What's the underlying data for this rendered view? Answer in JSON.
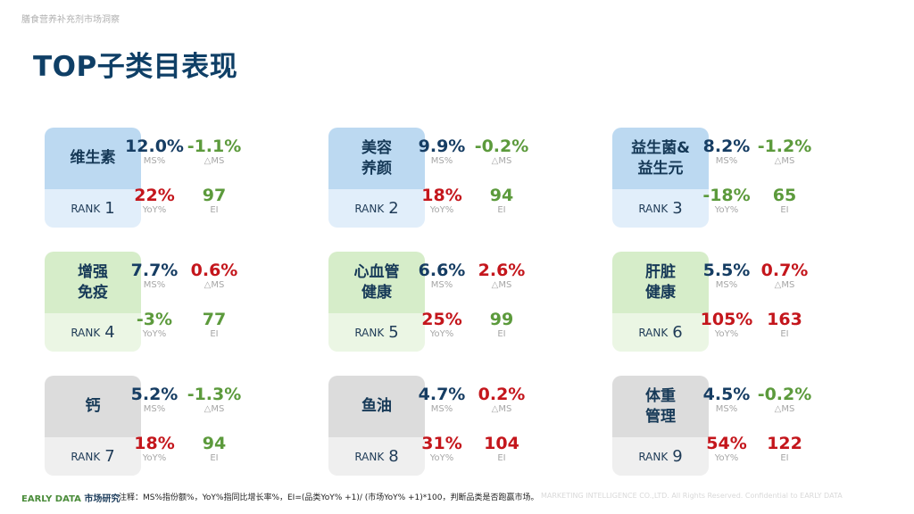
{
  "header": {
    "top_note": "膳食营养补充剂市场洞察",
    "title": "TOP子类目表现"
  },
  "labels": {
    "ms": "MS%",
    "dms": "△MS",
    "yoy": "YoY%",
    "ei": "EI",
    "rank": "RANK"
  },
  "colors": {
    "navy": "#163d63",
    "green": "#5c9a3c",
    "red": "#c4161c"
  },
  "categories": [
    {
      "name": "维生素",
      "rank": "1",
      "theme": "blue",
      "ms": "12.0%",
      "dms": "-1.1%",
      "yoy": "22%",
      "ei": "97",
      "ms_color": "navy",
      "dms_color": "green",
      "yoy_color": "red",
      "ei_color": "green"
    },
    {
      "name": "美容\n养颜",
      "rank": "2",
      "theme": "blue",
      "ms": "9.9%",
      "dms": "-0.2%",
      "yoy": "18%",
      "ei": "94",
      "ms_color": "navy",
      "dms_color": "green",
      "yoy_color": "red",
      "ei_color": "green"
    },
    {
      "name": "益生菌&\n益生元",
      "rank": "3",
      "theme": "blue",
      "ms": "8.2%",
      "dms": "-1.2%",
      "yoy": "-18%",
      "ei": "65",
      "ms_color": "navy",
      "dms_color": "green",
      "yoy_color": "green",
      "ei_color": "green"
    },
    {
      "name": "增强\n免疫",
      "rank": "4",
      "theme": "green",
      "ms": "7.7%",
      "dms": "0.6%",
      "yoy": "-3%",
      "ei": "77",
      "ms_color": "navy",
      "dms_color": "red",
      "yoy_color": "green",
      "ei_color": "green"
    },
    {
      "name": "心血管\n健康",
      "rank": "5",
      "theme": "green",
      "ms": "6.6%",
      "dms": "2.6%",
      "yoy": "25%",
      "ei": "99",
      "ms_color": "navy",
      "dms_color": "red",
      "yoy_color": "red",
      "ei_color": "green"
    },
    {
      "name": "肝脏\n健康",
      "rank": "6",
      "theme": "green",
      "ms": "5.5%",
      "dms": "0.7%",
      "yoy": "105%",
      "ei": "163",
      "ms_color": "navy",
      "dms_color": "red",
      "yoy_color": "red",
      "ei_color": "red"
    },
    {
      "name": "钙",
      "rank": "7",
      "theme": "gray",
      "ms": "5.2%",
      "dms": "-1.3%",
      "yoy": "18%",
      "ei": "94",
      "ms_color": "navy",
      "dms_color": "green",
      "yoy_color": "red",
      "ei_color": "green"
    },
    {
      "name": "鱼油",
      "rank": "8",
      "theme": "gray",
      "ms": "4.7%",
      "dms": "0.2%",
      "yoy": "31%",
      "ei": "104",
      "ms_color": "navy",
      "dms_color": "red",
      "yoy_color": "red",
      "ei_color": "red"
    },
    {
      "name": "体重\n管理",
      "rank": "9",
      "theme": "gray",
      "ms": "4.5%",
      "dms": "-0.2%",
      "yoy": "54%",
      "ei": "122",
      "ms_color": "navy",
      "dms_color": "green",
      "yoy_color": "red",
      "ei_color": "red"
    }
  ],
  "footer": {
    "brand_en": "EARLY DATA",
    "brand_zh": "市场研究",
    "note": "注释：MS%指份额%，YoY%指同比增长率%，EI=(品类YoY% +1)/ (市场YoY% +1)*100，判断品类是否跑赢市场。",
    "copyright": "MARKETING INTELLIGENCE CO.,LTD. All Rights Reserved. Confidential to EARLY DATA"
  }
}
